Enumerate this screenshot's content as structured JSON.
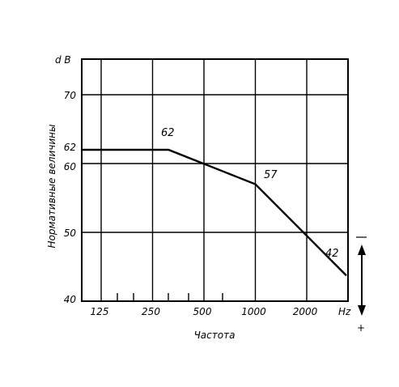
{
  "chart_data": {
    "type": "line",
    "y_unit": "d B",
    "x_unit": "Hz",
    "xlabel": "Частота",
    "ylabel": "Нормативные величины",
    "x_ticks": [
      "125",
      "250",
      "500",
      "1000",
      "2000"
    ],
    "y_ticks": [
      "40",
      "50",
      "60",
      "62",
      "70"
    ],
    "ylim": [
      40,
      80
    ],
    "grid": true,
    "series": [
      {
        "x": [
          88,
          310,
          1000,
          4000
        ],
        "values": [
          62,
          62,
          57,
          42
        ]
      }
    ],
    "data_labels": [
      {
        "x": 310,
        "y": 62,
        "text": "62"
      },
      {
        "x": 1000,
        "y": 57,
        "text": "57"
      },
      {
        "x": 4000,
        "y": 42,
        "text": "42"
      }
    ],
    "indicator": {
      "top_sign": "−",
      "bottom_sign": "+"
    }
  }
}
